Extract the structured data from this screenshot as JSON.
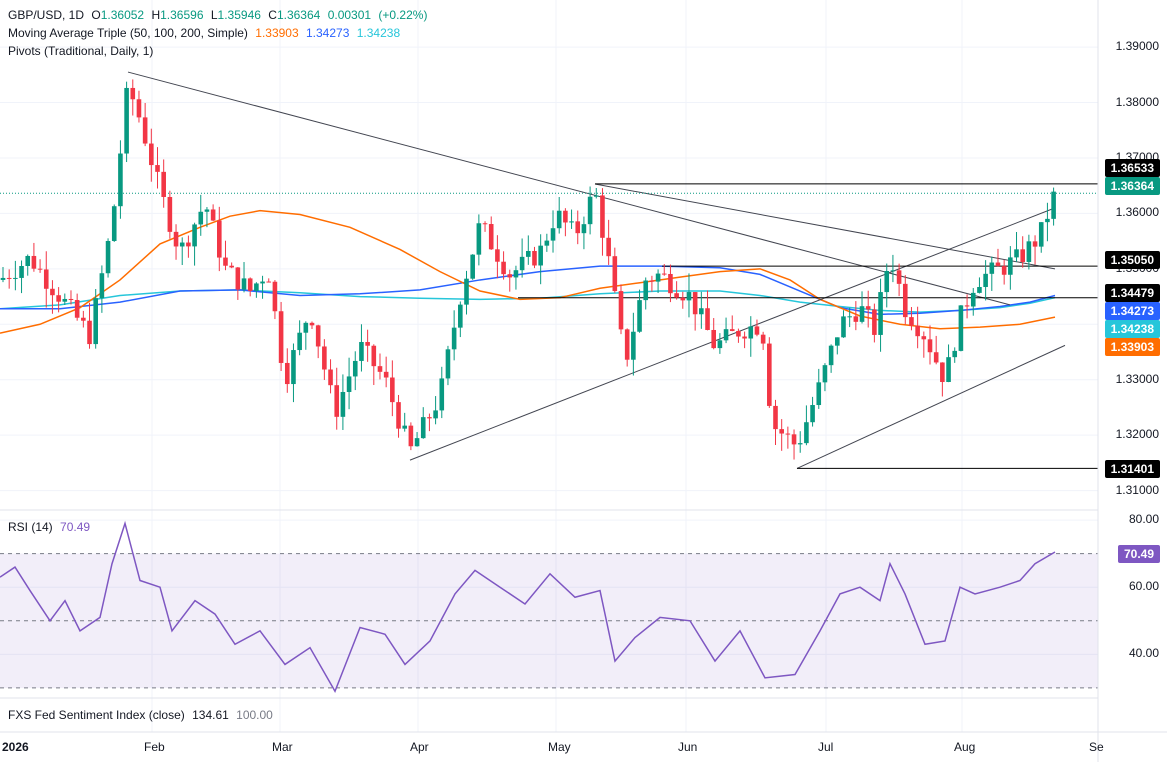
{
  "header": {
    "symbol": "GBP/USD, 1D",
    "ohlc": {
      "o_label": "O",
      "o": "1.36052",
      "h_label": "H",
      "h": "1.36596",
      "l_label": "L",
      "l": "1.35946",
      "c_label": "C",
      "c": "1.36364",
      "chg": "0.00301",
      "chg_pct": "(+0.22%)"
    },
    "ma_label": "Moving Average Triple (50, 100, 200, Simple)",
    "ma50": "1.33903",
    "ma100": "1.34273",
    "ma200": "1.34238",
    "pivots_label": "Pivots (Traditional, Daily, 1)",
    "rsi_label": "RSI (14)",
    "rsi_value": "70.49",
    "fxs_label": "FXS Fed Sentiment Index (close)",
    "fxs_value": "134.61",
    "fxs_value2": "100.00"
  },
  "colors": {
    "up": "#089981",
    "down": "#f23645",
    "ma50": "#ff6d00",
    "ma100": "#2962ff",
    "ma200": "#26c6da",
    "rsi": "#7e57c2",
    "price_tag": "#089981",
    "level_tag": "#000000"
  },
  "price_tags": {
    "current": "1.36364",
    "ma50": "1.33903",
    "ma100": "1.34273",
    "ma200": "1.34238"
  },
  "level_tags": [
    "1.36533",
    "1.35050",
    "1.34479",
    "1.31401"
  ],
  "chart_data": [
    {
      "type": "candlestick",
      "title": "GBP/USD, 1D",
      "y_axis_ticks": [
        "1.39000",
        "1.38000",
        "1.37000",
        "1.36000",
        "1.35000",
        "1.34000",
        "1.33000",
        "1.32000",
        "1.31000"
      ],
      "ylim": [
        1.3065,
        1.3985
      ],
      "x_axis_ticks": [
        "2026",
        "Feb",
        "Mar",
        "Apr",
        "May",
        "Jun",
        "Jul",
        "Aug",
        "Se"
      ],
      "series_ma": [
        {
          "name": "MA 50",
          "last": 1.33903
        },
        {
          "name": "MA 100",
          "last": 1.34273
        },
        {
          "name": "MA 200",
          "last": 1.34238
        }
      ],
      "horizontal_levels": [
        1.36533,
        1.3505,
        1.34479,
        1.31401
      ],
      "last_close": 1.36364
    },
    {
      "type": "line",
      "title": "RSI (14)",
      "y_axis_ticks": [
        "80.00",
        "60.00",
        "40.00"
      ],
      "ylim": [
        27,
        83
      ],
      "bands": [
        70,
        50,
        30
      ],
      "last": 70.49
    }
  ]
}
